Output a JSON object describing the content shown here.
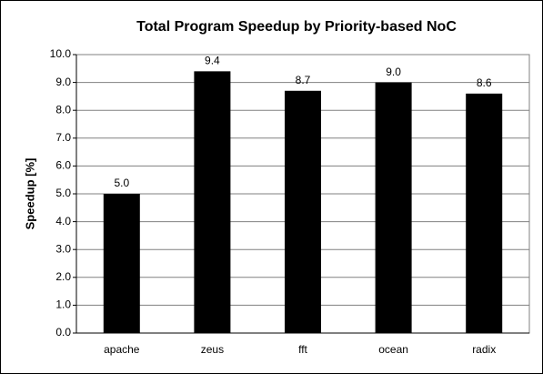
{
  "chart_data": {
    "type": "bar",
    "title": "Total Program Speedup by Priority-based NoC",
    "y_label": "Speedup [%]",
    "categories": [
      "apache",
      "zeus",
      "fft",
      "ocean",
      "radix"
    ],
    "values": [
      5.0,
      9.4,
      8.7,
      9.0,
      8.6
    ],
    "value_labels": [
      "5.0",
      "9.4",
      "8.7",
      "9.0",
      "8.6"
    ],
    "color": "#000000",
    "ylim": [
      0,
      10
    ],
    "yticks": [
      {
        "value": 0,
        "label": "0.0"
      },
      {
        "value": 1,
        "label": "1.0"
      },
      {
        "value": 2,
        "label": "2.0"
      },
      {
        "value": 3,
        "label": "3.0"
      },
      {
        "value": 4,
        "label": "4.0"
      },
      {
        "value": 5,
        "label": "5.0"
      },
      {
        "value": 6,
        "label": "6.0"
      },
      {
        "value": 7,
        "label": "7.0"
      },
      {
        "value": 8,
        "label": "8.0"
      },
      {
        "value": 9,
        "label": "9.0"
      },
      {
        "value": 10,
        "label": "10.0"
      }
    ],
    "grid": true
  }
}
